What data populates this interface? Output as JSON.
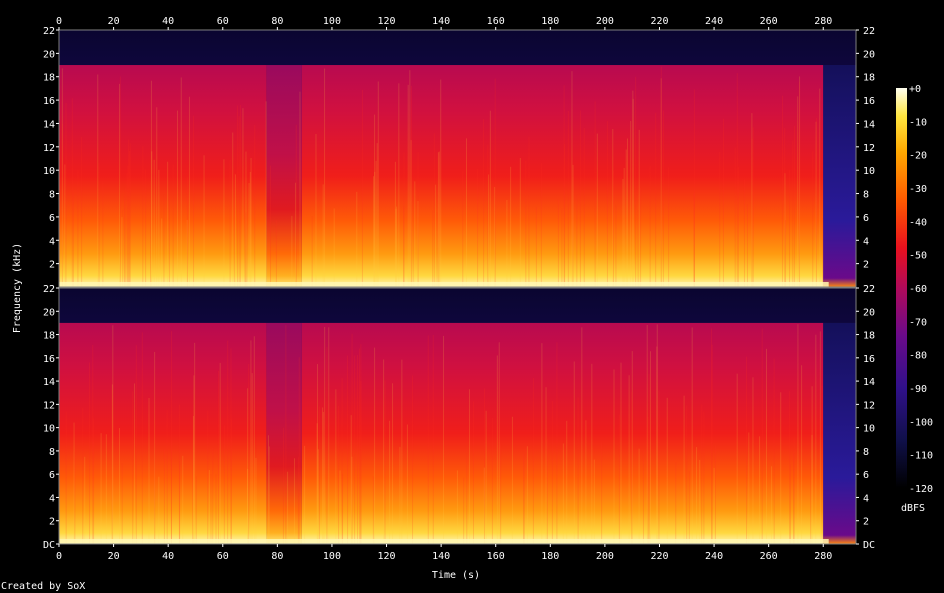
{
  "chart_data": {
    "type": "heatmap",
    "title": "",
    "xlabel": "Time (s)",
    "ylabel": "Frequency (kHz)",
    "credit": "Created by SoX",
    "xlim": [
      0,
      292
    ],
    "x_ticks": [
      0,
      20,
      40,
      60,
      80,
      100,
      120,
      140,
      160,
      180,
      200,
      220,
      240,
      260,
      280
    ],
    "y_ticks_top": [
      "2",
      "4",
      "6",
      "8",
      "10",
      "12",
      "14",
      "16",
      "18",
      "20",
      "22"
    ],
    "y_ticks_bottom": [
      "DC",
      "2",
      "4",
      "6",
      "8",
      "10",
      "12",
      "14",
      "16",
      "18",
      "20",
      "22"
    ],
    "ylim_khz": [
      0,
      22
    ],
    "colorbar": {
      "label": "dBFS",
      "range": [
        -120,
        0
      ],
      "ticks": [
        "+0",
        "-10",
        "-20",
        "-30",
        "-40",
        "-50",
        "-60",
        "-70",
        "-80",
        "-90",
        "-100",
        "-110",
        "-120"
      ]
    },
    "channels": [
      {
        "name": "channel-1",
        "lowpass_cutoff_khz": 19,
        "segments": [
          {
            "t": [
              0,
              76
            ],
            "level_db": -45
          },
          {
            "t": [
              76,
              89
            ],
            "level_db": -60
          },
          {
            "t": [
              89,
              280
            ],
            "level_db": -42
          },
          {
            "t": [
              280,
              292
            ],
            "level_db": -95
          }
        ]
      },
      {
        "name": "channel-2",
        "lowpass_cutoff_khz": 19,
        "segments": [
          {
            "t": [
              0,
              76
            ],
            "level_db": -45
          },
          {
            "t": [
              76,
              89
            ],
            "level_db": -58
          },
          {
            "t": [
              89,
              280
            ],
            "level_db": -42
          },
          {
            "t": [
              280,
              292
            ],
            "level_db": -95
          }
        ]
      }
    ]
  }
}
